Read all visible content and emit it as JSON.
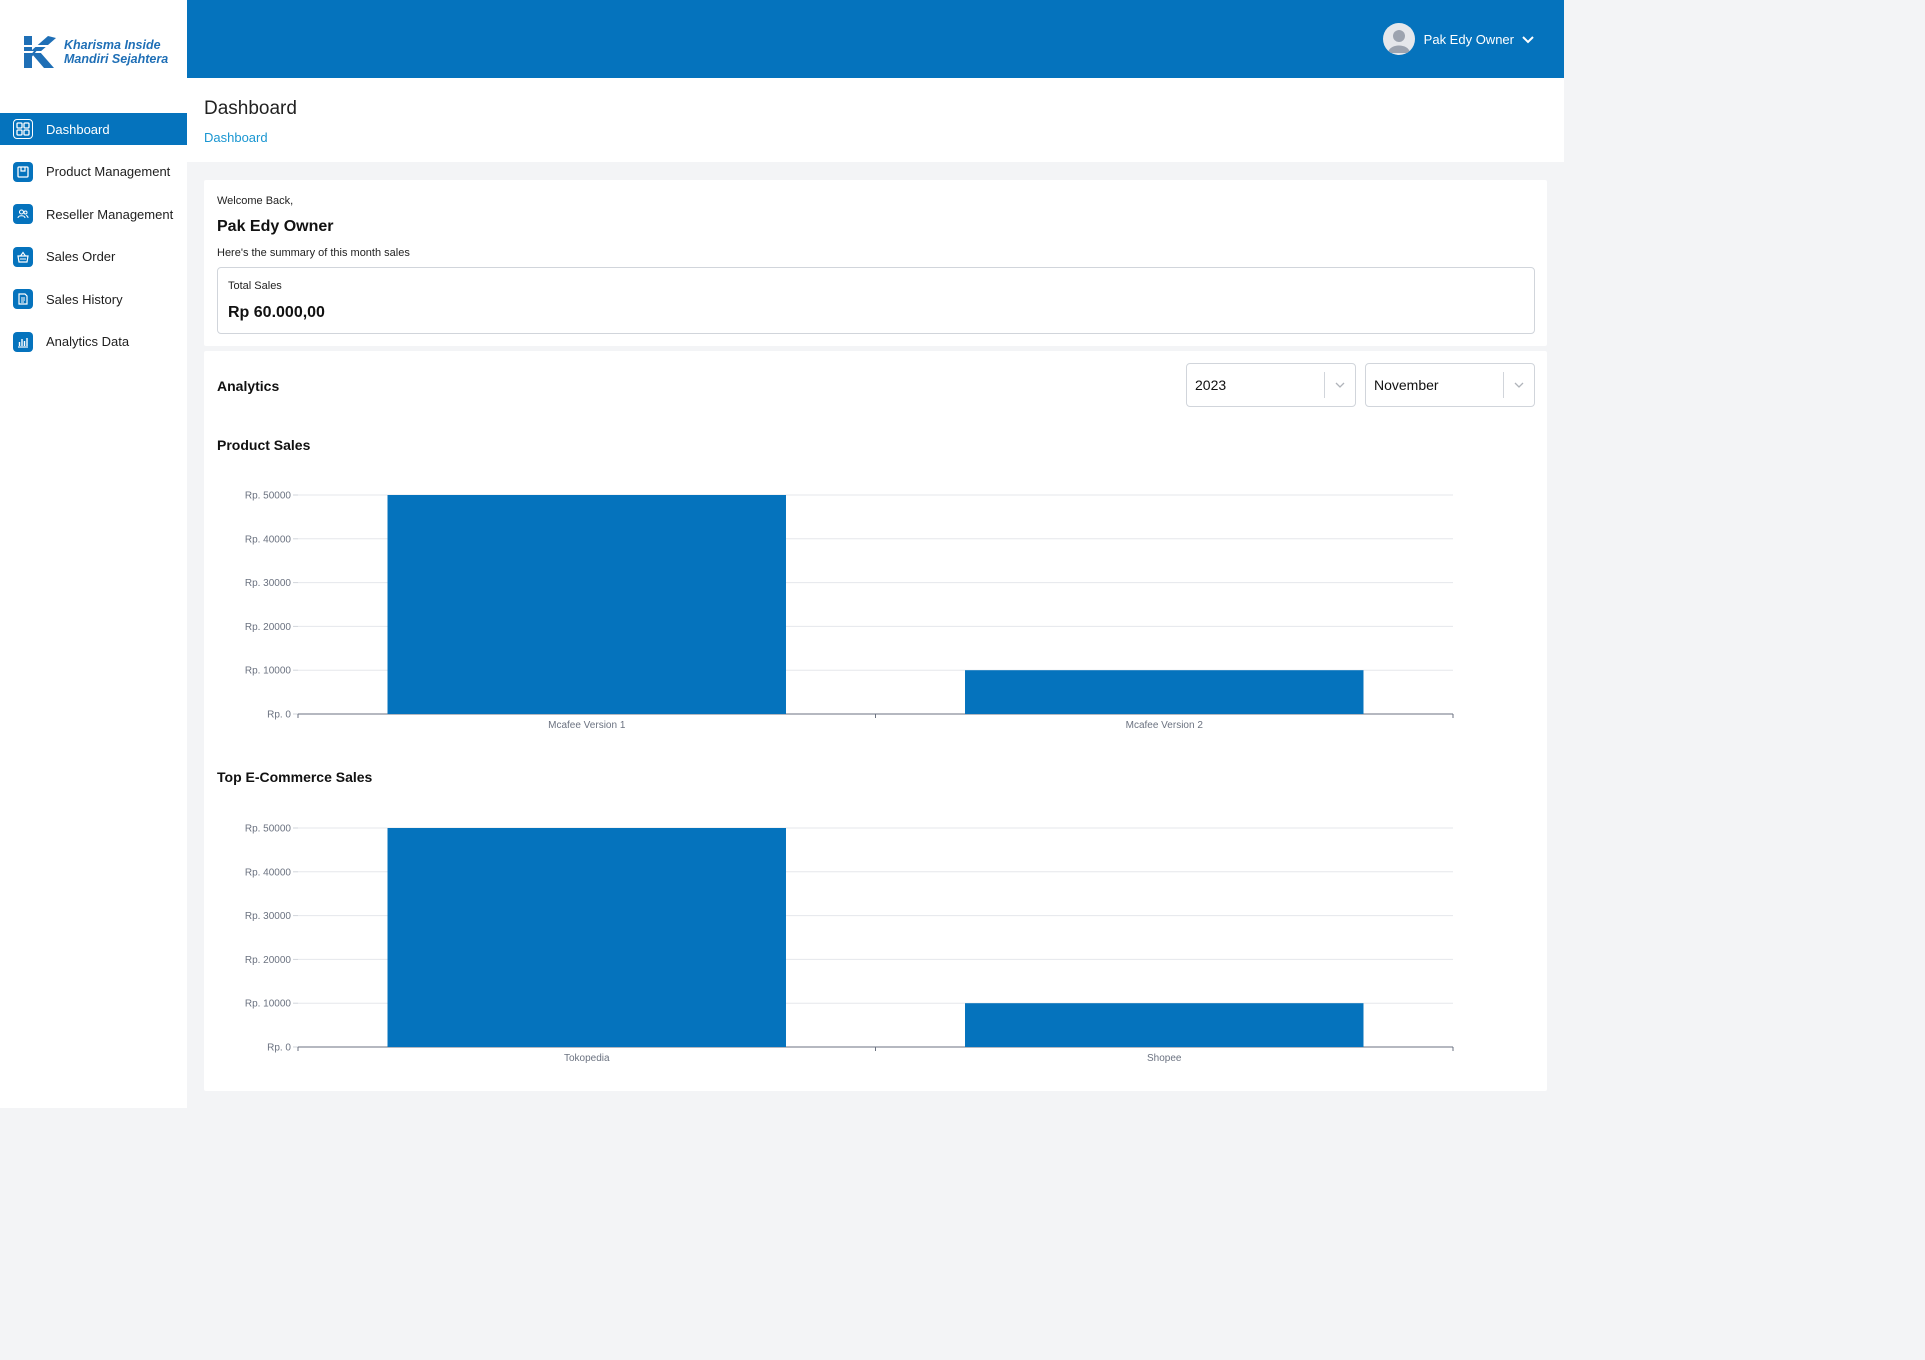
{
  "brand": {
    "line1": "Kharisma Inside",
    "line2": "Mandiri Sejahtera"
  },
  "sidebar": {
    "items": [
      {
        "label": "Dashboard",
        "icon": "dashboard-grid-icon",
        "active": true
      },
      {
        "label": "Product Management",
        "icon": "product-box-icon",
        "active": false
      },
      {
        "label": "Reseller Management",
        "icon": "users-icon",
        "active": false
      },
      {
        "label": "Sales Order",
        "icon": "basket-icon",
        "active": false
      },
      {
        "label": "Sales History",
        "icon": "document-icon",
        "active": false
      },
      {
        "label": "Analytics Data",
        "icon": "bar-chart-icon",
        "active": false
      }
    ]
  },
  "topbar": {
    "user_name": "Pak Edy Owner"
  },
  "header": {
    "title": "Dashboard",
    "breadcrumb": "Dashboard"
  },
  "welcome": {
    "greeting": "Welcome Back,",
    "name": "Pak Edy Owner",
    "subtitle": "Here's the summary of this month sales",
    "total_label": "Total Sales",
    "total_value": "Rp 60.000,00"
  },
  "analytics": {
    "title": "Analytics",
    "year": "2023",
    "month": "November"
  },
  "colors": {
    "primary": "#0573bd",
    "breadcrumb": "#1a96d1",
    "background": "#f3f4f6"
  },
  "chart_data": [
    {
      "type": "bar",
      "title": "Product Sales",
      "categories": [
        "Mcafee Version 1",
        "Mcafee Version 2"
      ],
      "values": [
        50000,
        10000
      ],
      "ylim": [
        0,
        50000
      ],
      "yticks": [
        "Rp. 0",
        "Rp. 10000",
        "Rp. 20000",
        "Rp. 30000",
        "Rp. 40000",
        "Rp. 50000"
      ],
      "grid": true
    },
    {
      "type": "bar",
      "title": "Top E-Commerce Sales",
      "categories": [
        "Tokopedia",
        "Shopee"
      ],
      "values": [
        50000,
        10000
      ],
      "ylim": [
        0,
        50000
      ],
      "yticks": [
        "Rp. 0",
        "Rp. 10000",
        "Rp. 20000",
        "Rp. 30000",
        "Rp. 40000",
        "Rp. 50000"
      ],
      "grid": true
    }
  ]
}
